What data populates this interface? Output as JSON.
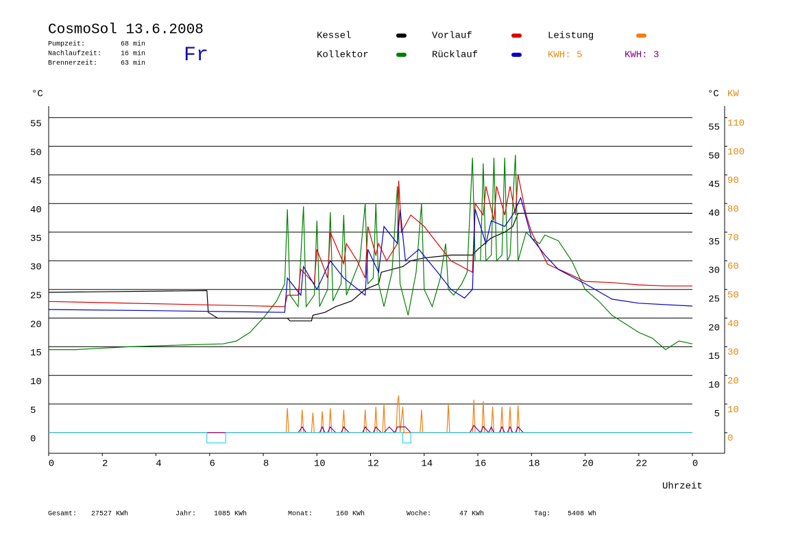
{
  "chart_data": {
    "type": "line",
    "title": "CosmoSol 13.6.2008",
    "weekday": "Fr",
    "info": [
      {
        "label": "Pumpzeit:",
        "value": "68 min"
      },
      {
        "label": "Nachlaufzeit:",
        "value": "16 min"
      },
      {
        "label": "Brennerzeit:",
        "value": "63 min"
      }
    ],
    "kwh_labels": [
      {
        "text": "KWH: 5",
        "color": "#e88a10"
      },
      {
        "text": "KWH: 3",
        "color": "#800080"
      }
    ],
    "y_label": "°C",
    "y2_label": "KW",
    "x_label": "Uhrzeit",
    "xlim": [
      0,
      25.2
    ],
    "xticks": [
      0,
      2,
      4,
      6,
      8,
      10,
      12,
      14,
      16,
      18,
      20,
      22,
      {
        "value": 24,
        "label": "0"
      }
    ],
    "ylim": [
      -3.6,
      57
    ],
    "yticks": [
      0,
      5,
      10,
      15,
      20,
      25,
      30,
      35,
      40,
      45,
      50,
      55
    ],
    "y2lim": [
      -7.2,
      114
    ],
    "y2ticks": [
      0,
      10,
      20,
      30,
      40,
      50,
      60,
      70,
      80,
      90,
      100,
      110
    ],
    "grid": true,
    "series": [
      {
        "name": "Kessel",
        "color": "#000000",
        "x": [
          0,
          5.9,
          5.95,
          6.3,
          8.9,
          9.0,
          9.8,
          9.85,
          10.3,
          10.7,
          11.3,
          11.8,
          12.3,
          12.4,
          12.8,
          13.2,
          13.5,
          14,
          15,
          15.8,
          16,
          16.5,
          17,
          17.3,
          17.5,
          24
        ],
        "values": [
          24.5,
          24.8,
          21,
          20,
          20,
          19.5,
          19.5,
          20.5,
          21,
          22,
          23,
          25,
          26,
          28,
          28.5,
          29,
          30,
          30.5,
          31,
          31,
          32,
          34,
          35,
          36,
          38.3,
          38.3
        ]
      },
      {
        "name": "Kollektor",
        "color": "#008000",
        "x": [
          0,
          1,
          3,
          5,
          6.5,
          7,
          7.5,
          8,
          8.5,
          8.8,
          8.9,
          9.0,
          9.3,
          9.5,
          9.6,
          9.9,
          10,
          10.1,
          10.4,
          10.5,
          10.6,
          10.9,
          11.0,
          11.1,
          11.6,
          11.8,
          11.9,
          12.1,
          12.2,
          12.3,
          12.5,
          12.8,
          13.0,
          13.1,
          13.4,
          13.7,
          13.9,
          14.0,
          14.3,
          14.6,
          14.8,
          14.9,
          15.1,
          15.4,
          15.6,
          15.8,
          15.9,
          16.1,
          16.2,
          16.3,
          16.5,
          16.6,
          16.7,
          16.9,
          17.0,
          17.1,
          17.2,
          17.4,
          17.5,
          17.8,
          18.0,
          18.3,
          18.5,
          19.0,
          19.5,
          20,
          20.5,
          21,
          22,
          22.5,
          23,
          23.5,
          24
        ],
        "values": [
          14.5,
          14.5,
          15,
          15.3,
          15.5,
          16,
          17.5,
          20,
          23,
          26,
          39,
          24,
          22,
          39.5,
          22,
          24,
          37,
          22,
          25,
          38.5,
          23,
          26,
          38,
          24,
          30,
          40,
          26,
          27,
          40,
          26,
          22,
          28,
          43,
          26,
          20.5,
          28,
          40,
          25,
          22,
          27,
          33,
          25,
          24,
          26,
          28,
          48,
          30,
          30,
          47,
          30,
          31,
          48,
          30,
          31,
          48,
          30,
          31,
          48.5,
          30,
          35,
          34,
          33,
          34.5,
          33.5,
          30,
          25,
          23,
          20.5,
          17.5,
          16.5,
          14.5,
          16,
          15.5
        ]
      },
      {
        "name": "Vorlauf",
        "color": "#dd0000",
        "x": [
          0,
          2,
          4,
          6,
          8,
          8.8,
          8.9,
          9.3,
          9.4,
          9.9,
          10.0,
          10.4,
          10.5,
          11.0,
          11.1,
          11.5,
          11.8,
          11.9,
          12.2,
          12.3,
          12.6,
          13.0,
          13.05,
          13.15,
          13.5,
          14,
          14.5,
          15,
          15.8,
          15.9,
          16.2,
          16.3,
          16.6,
          16.7,
          17,
          17.2,
          17.4,
          17.5,
          17.8,
          18,
          18.6,
          19.5,
          20,
          21,
          22,
          23,
          24
        ],
        "values": [
          22.9,
          22.7,
          22.5,
          22.3,
          22.1,
          22,
          24,
          24,
          28.5,
          26,
          32,
          27,
          35,
          29.5,
          33,
          30,
          27,
          36,
          31,
          33,
          30,
          33,
          44,
          35,
          38,
          36,
          33,
          30,
          28,
          40,
          38,
          43,
          37,
          43,
          38,
          43,
          38,
          45,
          38,
          35,
          29.4,
          27.5,
          26.4,
          26.2,
          25.8,
          25.6,
          25.6
        ]
      },
      {
        "name": "Rücklauf",
        "color": "#0000cc",
        "x": [
          0,
          4,
          8.8,
          8.9,
          9.4,
          9.5,
          10,
          10.5,
          11,
          11.8,
          11.9,
          12.3,
          12.5,
          13.0,
          13.1,
          13.3,
          13.8,
          14.5,
          15,
          15.5,
          15.8,
          15.9,
          16.3,
          16.5,
          17,
          17.3,
          17.6,
          18,
          18.5,
          19,
          20,
          21,
          22,
          24
        ],
        "values": [
          21.5,
          21.3,
          21,
          27,
          24,
          29,
          25,
          30,
          27,
          24,
          32,
          28,
          36,
          33,
          39,
          30,
          32,
          28,
          25,
          23.5,
          25,
          39,
          33,
          37,
          36,
          38,
          41,
          34,
          31,
          28.5,
          26,
          23.3,
          22.6,
          22.1
        ]
      },
      {
        "name": "Leistung",
        "color": "#f08010",
        "axis": "y2",
        "x": [
          0,
          8.85,
          8.9,
          8.95,
          9.4,
          9.45,
          9.5,
          9.8,
          9.85,
          9.9,
          10.15,
          10.2,
          10.25,
          10.45,
          10.5,
          10.55,
          10.95,
          11.0,
          11.05,
          11.75,
          11.8,
          11.85,
          12.15,
          12.2,
          12.25,
          12.45,
          12.5,
          12.55,
          12.95,
          13.0,
          13.05,
          13.1,
          13.2,
          13.25,
          13.85,
          13.9,
          13.95,
          14.85,
          14.9,
          14.95,
          15.8,
          15.85,
          15.9,
          16.15,
          16.2,
          16.25,
          16.5,
          16.55,
          16.6,
          16.85,
          16.9,
          16.95,
          17.15,
          17.2,
          17.25,
          17.45,
          17.5,
          17.55,
          24
        ],
        "values": [
          0,
          0,
          8.6,
          0,
          0,
          8,
          0,
          0,
          7,
          0,
          0,
          7.5,
          0,
          0,
          8.5,
          0,
          0,
          8,
          0,
          0,
          8,
          0,
          0,
          9,
          0,
          0,
          10,
          0,
          0,
          10,
          13,
          0,
          9,
          0,
          0,
          8,
          0,
          0,
          10,
          0,
          0,
          11.5,
          0,
          0,
          11,
          0,
          0,
          9,
          0,
          0,
          9,
          0,
          0,
          9,
          0,
          0,
          9.5,
          0,
          0
        ]
      },
      {
        "color": "#800080",
        "axis": "y2",
        "x": [
          0,
          9.3,
          9.45,
          9.6,
          10.1,
          10.2,
          10.3,
          10.4,
          10.5,
          10.7,
          10.9,
          11.0,
          11.2,
          11.7,
          11.8,
          12.0,
          12.1,
          12.2,
          12.4,
          12.5,
          12.7,
          12.9,
          13.0,
          13.3,
          13.5,
          15.7,
          15.85,
          16.1,
          16.2,
          16.4,
          16.5,
          16.6,
          16.8,
          16.9,
          17.0,
          17.1,
          17.2,
          17.3,
          17.4,
          17.5,
          17.7,
          24
        ],
        "values": [
          0,
          0,
          2,
          0,
          0,
          2,
          0,
          0,
          2,
          0,
          0,
          2,
          0,
          0,
          2,
          0,
          0,
          2,
          0,
          0,
          2,
          0,
          2,
          2,
          0,
          0,
          2.5,
          0,
          2.2,
          0,
          2,
          0,
          0,
          2,
          0,
          0,
          2,
          0,
          0,
          2,
          0,
          0
        ]
      },
      {
        "color": "#30d8e8",
        "x": [
          0,
          5.9,
          5.9,
          6.6,
          6.6,
          13.2,
          13.2,
          13.5,
          13.5,
          24
        ],
        "values": [
          0,
          0,
          -1.8,
          -1.8,
          0,
          0,
          -1.8,
          -1.8,
          0,
          0
        ]
      }
    ],
    "footer": [
      {
        "label": "Gesamt:",
        "value": "27527 KWh"
      },
      {
        "label": "Jahr:",
        "value": "1085 KWh"
      },
      {
        "label": "Monat:",
        "value": "160 KWh"
      },
      {
        "label": "Woche:",
        "value": "47 KWh"
      },
      {
        "label": "Tag:",
        "value": "5408 Wh"
      }
    ]
  }
}
